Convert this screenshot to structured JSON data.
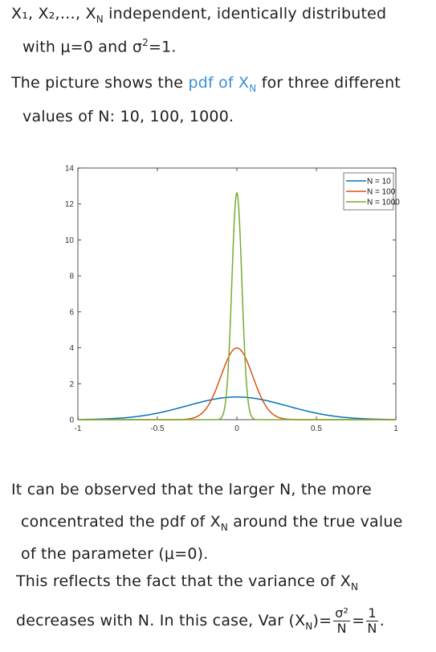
{
  "text": {
    "l1_vars": "X₁, X₂,…, X",
    "l1_sub": "N",
    "l1_rest": " independent, identically distributed",
    "l2_a": "with μ=0 and σ",
    "l2_sup": "2",
    "l2_b": "=1.",
    "l3_a": "The picture shows the ",
    "l3_pdf": "pdf of X",
    "l3_sub": "N",
    "l3_b": " for three different",
    "l4": "values of N: 10, 100, 1000.",
    "b1": "It can be observed that the larger N, the more",
    "b2_a": "concentrated the pdf of X",
    "b2_sub": "N",
    "b2_b": " around the true value",
    "b3": "of the parameter (μ=0).",
    "b4_a": "This reflects the fact that the variance of X",
    "b4_sub": "N",
    "b5_a": "decreases with N. In this case, Var (X",
    "b5_sub": "N",
    "b5_b": ")=",
    "frac1_num": "σ²",
    "frac1_den": "N",
    "eq": "=",
    "frac2_num": "1",
    "frac2_den": "N",
    "b5_end": "."
  },
  "colors": {
    "blue": "#0072BD",
    "red": "#D95319",
    "green": "#77AC30",
    "handBlue": "#3d8fd6"
  },
  "chart_data": {
    "type": "line",
    "xlim": [
      -1,
      1
    ],
    "ylim": [
      0,
      14
    ],
    "xticks": [
      -1,
      -0.5,
      0,
      0.5,
      1
    ],
    "xtick_labels": [
      "-1",
      "-0.5",
      "0",
      "0.5",
      "1"
    ],
    "yticks": [
      0,
      2,
      4,
      6,
      8,
      10,
      12,
      14
    ],
    "ytick_labels": [
      "0",
      "2",
      "4",
      "6",
      "8",
      "10",
      "12",
      "14"
    ],
    "grid": false,
    "legend_position": "top-right",
    "series": [
      {
        "name": "N = 10",
        "N": 10,
        "mu": 0,
        "sigma2": 1,
        "peak": 1.26
      },
      {
        "name": "N = 100",
        "N": 100,
        "mu": 0,
        "sigma2": 1,
        "peak": 3.99
      },
      {
        "name": "N = 1000",
        "N": 1000,
        "mu": 0,
        "sigma2": 1,
        "peak": 12.6
      }
    ]
  }
}
